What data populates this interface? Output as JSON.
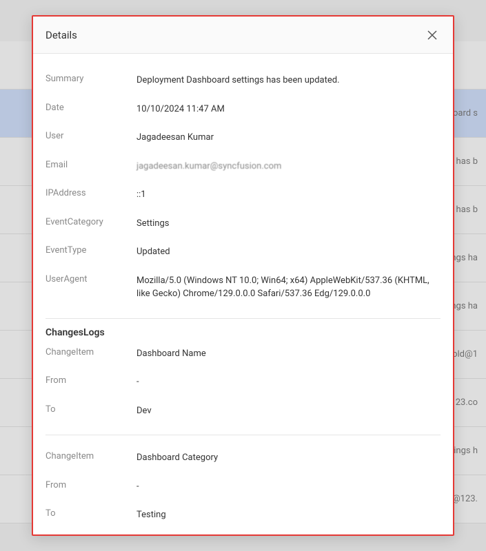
{
  "modal": {
    "title": "Details",
    "fields": {
      "summary_label": "Summary",
      "summary_value": "Deployment Dashboard settings has been updated.",
      "date_label": "Date",
      "date_value": "10/10/2024 11:47 AM",
      "user_label": "User",
      "user_value": "Jagadeesan Kumar",
      "email_label": "Email",
      "email_value": "jagadeesan.kumar@syncfusion.com",
      "ip_label": "IPAddress",
      "ip_value": "::1",
      "category_label": "EventCategory",
      "category_value": "Settings",
      "type_label": "EventType",
      "type_value": "Updated",
      "agent_label": "UserAgent",
      "agent_value": "Mozilla/5.0 (Windows NT 10.0; Win64; x64) AppleWebKit/537.36 (KHTML, like Gecko) Chrome/129.0.0.0 Safari/537.36 Edg/129.0.0.0"
    },
    "changes": {
      "title": "ChangesLogs",
      "item_label": "ChangeItem",
      "from_label": "From",
      "to_label": "To",
      "logs": [
        {
          "item": "Dashboard Name",
          "from": "-",
          "to": "Dev"
        },
        {
          "item": "Dashboard Category",
          "from": "-",
          "to": "Testing"
        }
      ]
    }
  },
  "background_rows": [
    {
      "text": "",
      "highlight": false
    },
    {
      "text": "oard s",
      "highlight": true
    },
    {
      "text": "s has b",
      "highlight": false
    },
    {
      "text": "s has b",
      "highlight": false
    },
    {
      "text": "ings ha",
      "highlight": false
    },
    {
      "text": "ings ha",
      "highlight": false
    },
    {
      "text": "old@1",
      "highlight": false
    },
    {
      "text": "123.co",
      "highlight": false
    },
    {
      "text": "tings h",
      "highlight": false
    },
    {
      "text": "@123.",
      "highlight": false
    }
  ]
}
